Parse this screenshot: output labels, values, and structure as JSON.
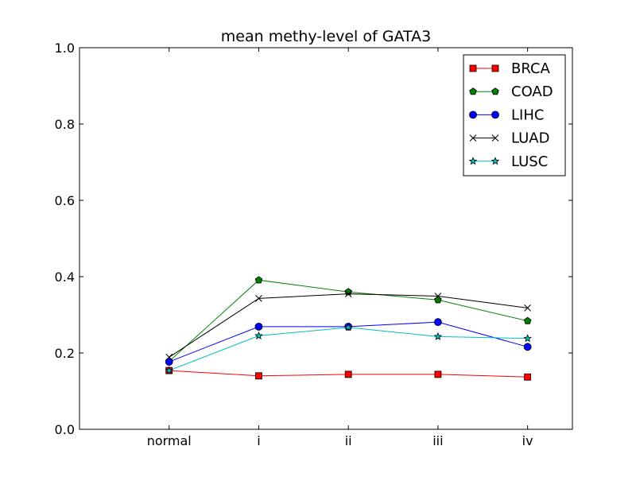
{
  "chart_data": {
    "type": "line",
    "title": "mean methy-level of GATA3",
    "xlabel": "",
    "ylabel": "",
    "categories": [
      "normal",
      "i",
      "ii",
      "iii",
      "iv"
    ],
    "ylim": [
      0.0,
      1.0
    ],
    "xlim": [
      -1,
      4.5
    ],
    "yticks": [
      "0.0",
      "0.2",
      "0.4",
      "0.6",
      "0.8",
      "1.0"
    ],
    "grid": false,
    "legend_position": "top-right",
    "series": [
      {
        "name": "BRCA",
        "color": "#ff0000",
        "marker": "square",
        "values": [
          0.154,
          0.14,
          0.144,
          0.144,
          0.137
        ]
      },
      {
        "name": "COAD",
        "color": "#008000",
        "marker": "pentagon",
        "values": [
          0.178,
          0.391,
          0.36,
          0.339,
          0.284
        ]
      },
      {
        "name": "LIHC",
        "color": "#0000ff",
        "marker": "circle",
        "values": [
          0.177,
          0.269,
          0.269,
          0.281,
          0.216
        ]
      },
      {
        "name": "LUAD",
        "color": "#000000",
        "marker": "x",
        "values": [
          0.189,
          0.343,
          0.355,
          0.349,
          0.318
        ]
      },
      {
        "name": "LUSC",
        "color": "#00bfbf",
        "marker": "star",
        "values": [
          0.154,
          0.245,
          0.267,
          0.243,
          0.238
        ]
      }
    ]
  }
}
